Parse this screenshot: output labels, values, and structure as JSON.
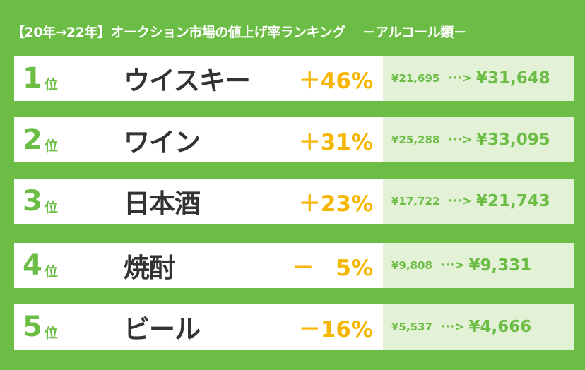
{
  "title": {
    "main": "【20年→22年】オークション市場の値上げ率ランキング",
    "category": "－アルコール類－"
  },
  "rows": [
    {
      "rank": "1",
      "suffix": "位",
      "name": "ウイスキー",
      "change": "＋46%",
      "from": "¥21,695",
      "arrow": "···>",
      "to": "¥31,648"
    },
    {
      "rank": "2",
      "suffix": "位",
      "name": "ワイン",
      "change": "＋31%",
      "from": "¥25,288",
      "arrow": "···>",
      "to": "¥33,095"
    },
    {
      "rank": "3",
      "suffix": "位",
      "name": "日本酒",
      "change": "＋23%",
      "from": "¥17,722",
      "arrow": "···>",
      "to": "¥21,743"
    },
    {
      "rank": "4",
      "suffix": "位",
      "name": "焼酎",
      "change": "－　5%",
      "from": "¥9,808",
      "arrow": "···>",
      "to": "¥9,331"
    },
    {
      "rank": "5",
      "suffix": "位",
      "name": "ビール",
      "change": "－16%",
      "from": "¥5,537",
      "arrow": "···>",
      "to": "¥4,666"
    }
  ],
  "colors": {
    "background": "#6cbd45",
    "rank_text": "#6cbd45",
    "percent_text": "#f6b600",
    "price_panel": "#e3f1d7",
    "name_text": "#333333"
  }
}
